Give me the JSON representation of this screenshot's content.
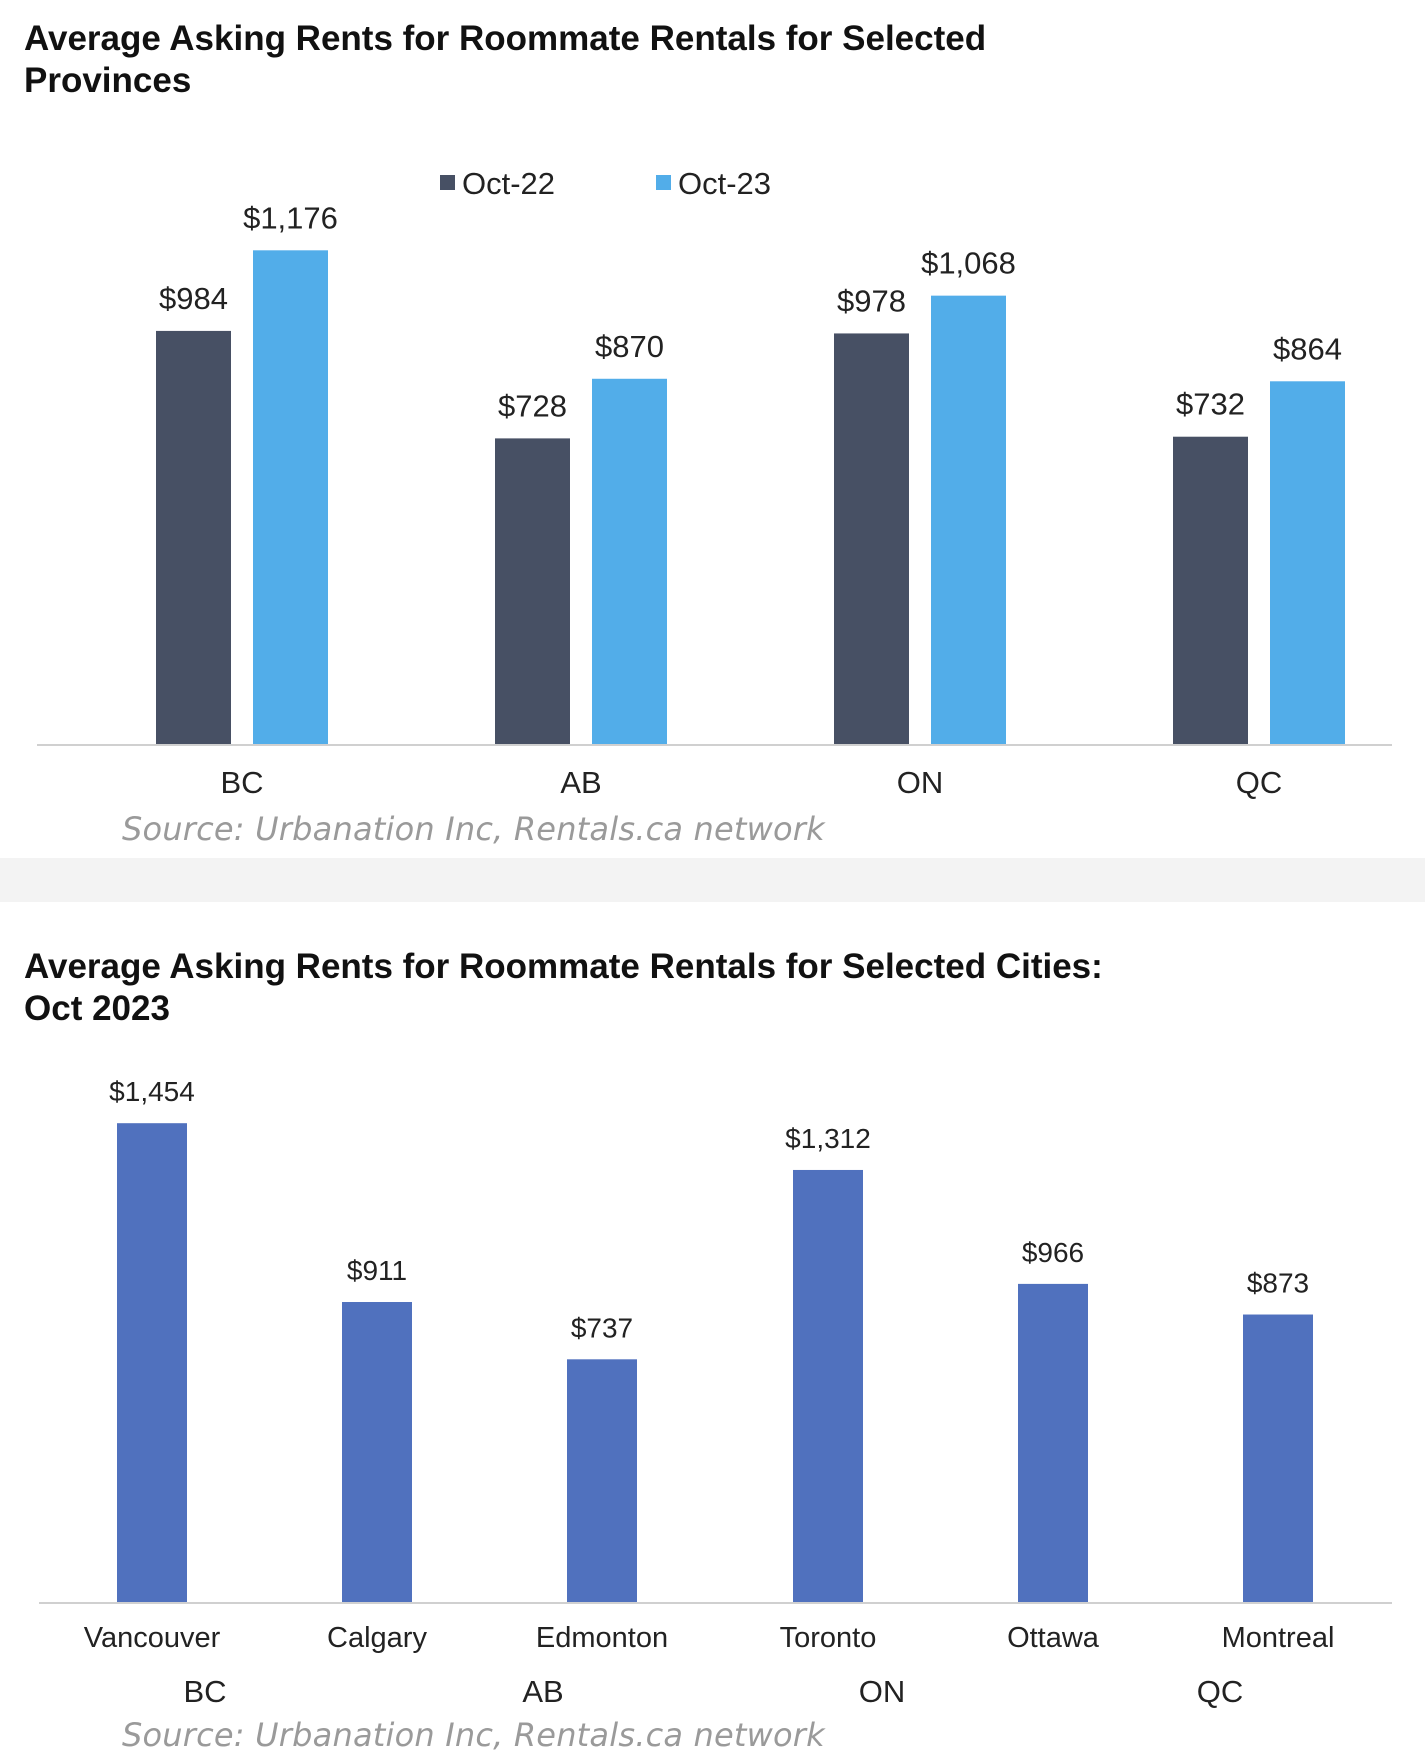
{
  "chart_data": [
    {
      "type": "bar",
      "title": "Average Asking Rents for Roommate Rentals for Selected\nProvinces",
      "categories": [
        "BC",
        "AB",
        "ON",
        "QC"
      ],
      "series": [
        {
          "name": "Oct-22",
          "values": [
            984,
            728,
            978,
            732
          ],
          "labels": [
            "$984",
            "$728",
            "$978",
            "$732"
          ],
          "color": "#475064"
        },
        {
          "name": "Oct-23",
          "values": [
            1176,
            870,
            1068,
            864
          ],
          "labels": [
            "$1,176",
            "$870",
            "$1,068",
            "$864"
          ],
          "color": "#52ade9"
        }
      ],
      "legend": "top-center",
      "grid": false,
      "y_axis_visible": false,
      "source": "Source: Urbanation Inc, Rentals.ca network"
    },
    {
      "type": "bar",
      "title": "Average Asking Rents for Roommate Rentals for Selected Cities:\nOct 2023",
      "categories": [
        "Vancouver",
        "Calgary",
        "Edmonton",
        "Toronto",
        "Ottawa",
        "Montreal"
      ],
      "groups": [
        "BC",
        "AB",
        "ON",
        "QC"
      ],
      "series": [
        {
          "values": [
            1454,
            911,
            737,
            1312,
            966,
            873
          ],
          "labels": [
            "$1,454",
            "$911",
            "$737",
            "$1,312",
            "$966",
            "$873"
          ],
          "color": "#5071be"
        }
      ],
      "grid": false,
      "y_axis_visible": false,
      "source": "Source: Urbanation Inc, Rentals.ca network"
    }
  ]
}
